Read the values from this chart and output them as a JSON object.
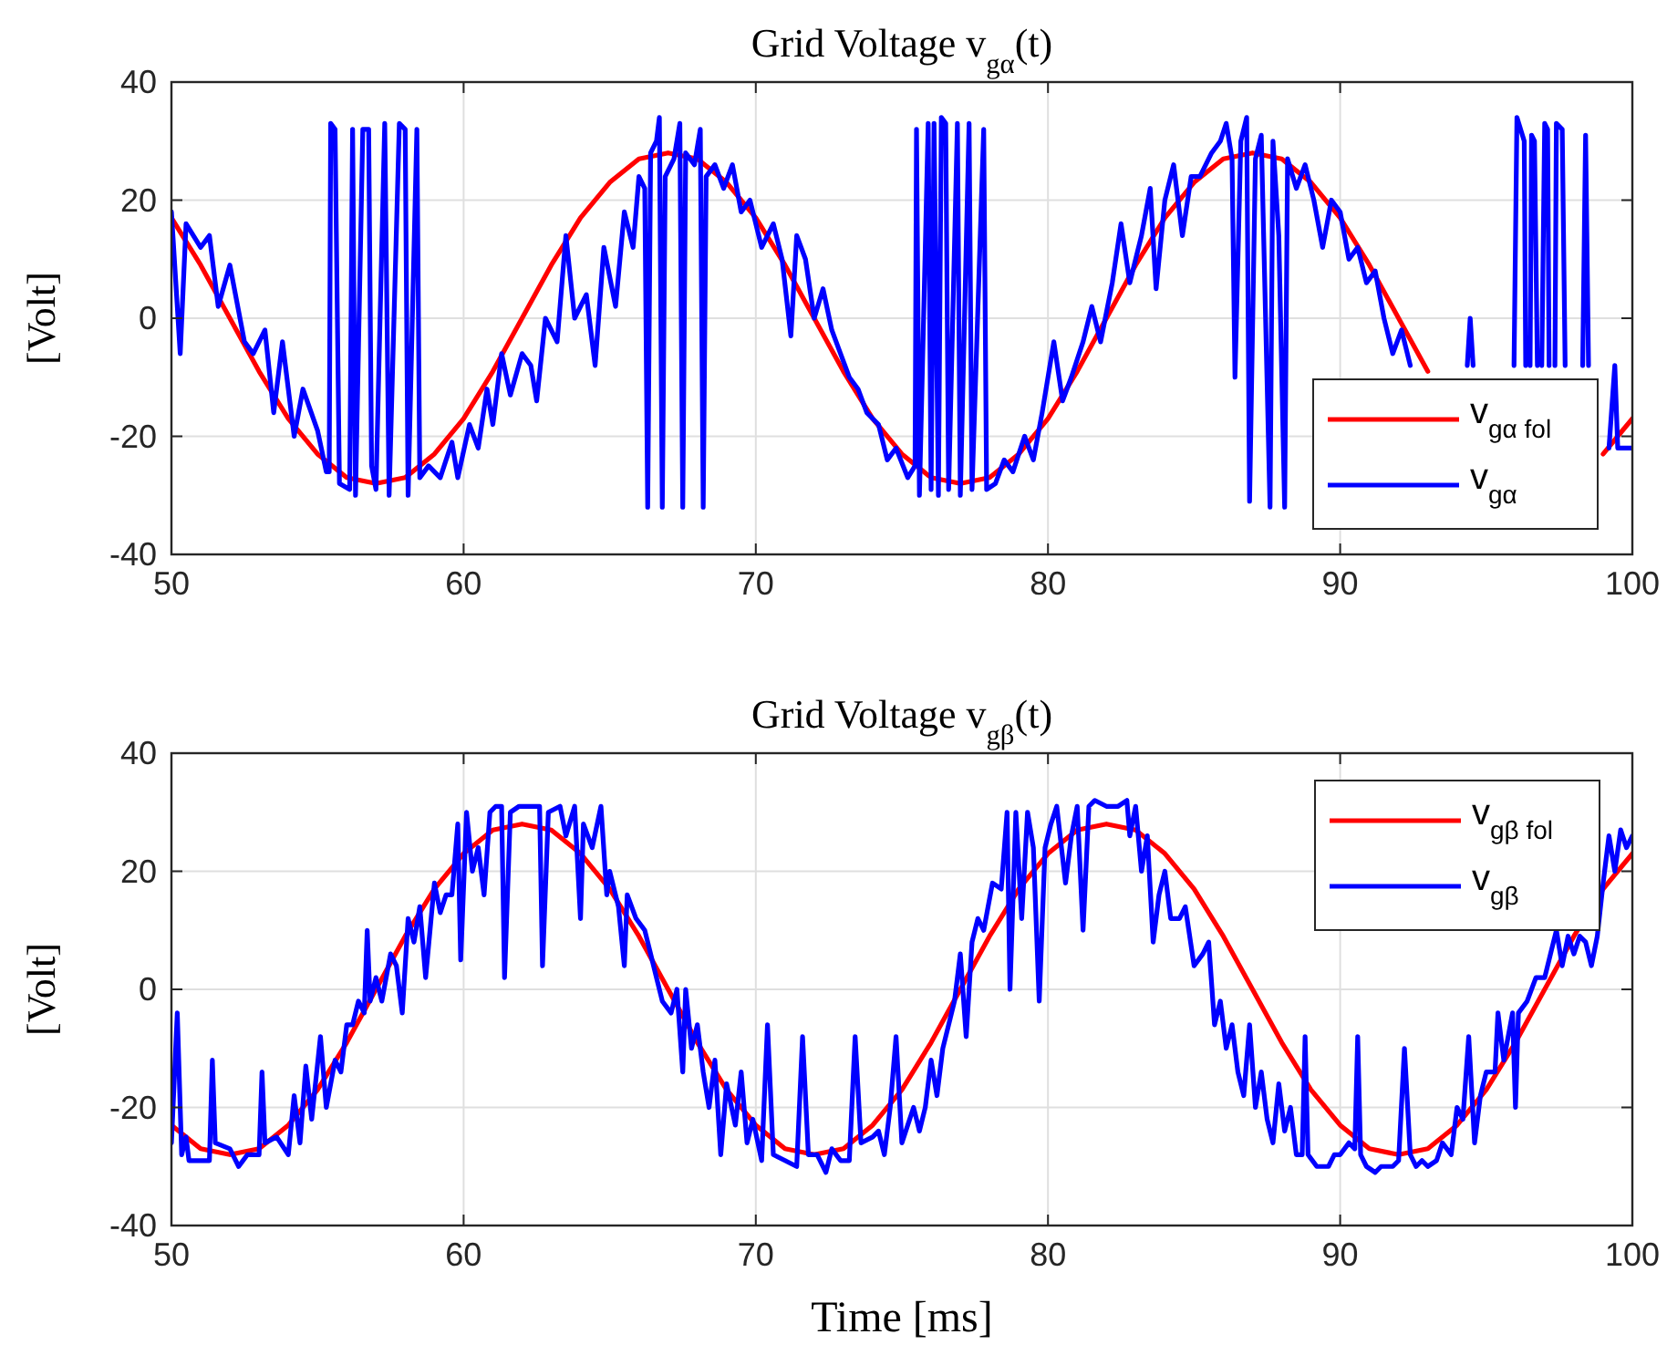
{
  "chart_data": [
    {
      "type": "line",
      "title": "Grid Voltage v$_{gα}$(t)",
      "ylabel": "[Volt]",
      "xlim": [
        50,
        100
      ],
      "xticks": [
        50,
        60,
        70,
        80,
        90,
        100
      ],
      "ylim": [
        -40,
        40
      ],
      "yticks": [
        -40,
        -20,
        0,
        20,
        40
      ],
      "grid": true,
      "legend": "bottom right",
      "line_style": "solid",
      "marker": "none",
      "series": [
        {
          "name": "v$_{gα fol}$",
          "color": "#ff0000",
          "x": [
            50,
            51,
            52,
            53,
            54,
            55,
            56,
            57,
            58,
            59,
            60,
            61,
            62,
            63,
            64,
            65,
            66,
            67,
            68,
            69,
            70,
            71,
            72,
            73,
            74,
            75,
            76,
            77,
            78,
            79,
            80,
            81,
            82,
            83,
            84,
            85,
            86,
            87,
            88,
            89,
            90,
            91,
            92,
            93,
            94,
            95,
            96,
            97,
            98,
            99,
            100
          ],
          "values": [
            17,
            9,
            0,
            -9,
            -17,
            -23,
            -27,
            -28,
            -27,
            -23,
            -17,
            -9,
            0,
            9,
            17,
            23,
            27,
            28,
            27,
            23,
            17,
            9,
            0,
            -9,
            -17,
            -23,
            -27,
            -28,
            -27,
            -23,
            -17,
            -9,
            0,
            9,
            17,
            23,
            27,
            28,
            27,
            23,
            17,
            9,
            0,
            -9,
            null,
            null,
            null,
            null,
            null,
            -23,
            -17
          ]
        },
        {
          "name": "v$_{gα}$",
          "color": "#0000ff",
          "x": [
            50,
            50.3,
            50.5,
            51,
            51.3,
            51.6,
            52,
            52.5,
            52.8,
            53.2,
            53.5,
            53.8,
            54.2,
            54.5,
            55,
            55.3,
            55.4,
            55.45,
            55.6,
            55.75,
            56.1,
            56.2,
            56.3,
            56.55,
            56.75,
            56.85,
            57,
            57.3,
            57.45,
            57.8,
            58,
            58.1,
            58.4,
            58.5,
            58.8,
            59.2,
            59.6,
            59.8,
            60.2,
            60.5,
            60.8,
            61,
            61.3,
            61.6,
            62,
            62.3,
            62.5,
            62.8,
            63.2,
            63.5,
            63.8,
            64.2,
            64.5,
            64.8,
            65.2,
            65.5,
            65.8,
            66,
            66.2,
            66.3,
            66.4,
            66.6,
            66.7,
            66.8,
            66.9,
            67.2,
            67.4,
            67.5,
            67.6,
            67.9,
            68.1,
            68.2,
            68.3,
            68.6,
            68.9,
            69.2,
            69.5,
            69.8,
            70.2,
            70.6,
            70.9,
            71.2,
            71.4,
            71.7,
            72,
            72.3,
            72.6,
            72.9,
            73.2,
            73.5,
            73.8,
            74.2,
            74.5,
            74.8,
            75.2,
            75.45,
            75.5,
            75.6,
            75.9,
            76,
            76.1,
            76.25,
            76.35,
            76.5,
            76.6,
            76.9,
            77,
            77.3,
            77.4,
            77.8,
            77.9,
            78.2,
            78.5,
            78.8,
            79.2,
            79.5,
            79.8,
            80.2,
            80.5,
            80.8,
            81.2,
            81.5,
            81.8,
            82.2,
            82.5,
            82.8,
            83.2,
            83.5,
            83.7,
            84,
            84.3,
            84.6,
            84.9,
            85.2,
            85.6,
            85.9,
            86.1,
            86.3,
            86.4,
            86.6,
            86.8,
            86.9,
            87.1,
            87.3,
            87.6,
            87.7,
            87.9,
            88.1,
            88.2,
            88.5,
            88.8,
            89.1,
            89.4,
            89.7,
            90,
            90.3,
            90.6,
            90.9,
            91.2,
            91.5,
            91.8,
            92.1,
            92.4,
            92.5,
            94.35,
            94.45,
            94.55,
            94.6,
            95.95,
            96.05,
            96.3,
            96.35,
            96.4,
            96.5,
            96.55,
            96.65,
            96.75,
            96.8,
            96.9,
            97.0,
            97.1,
            97.15,
            97.2,
            97.35,
            97.4,
            97.6,
            97.7,
            97.8,
            98.3,
            98.4,
            98.5,
            98.6,
            99.2,
            99.4,
            99.5,
            100
          ],
          "values": [
            18,
            -6,
            16,
            12,
            14,
            2,
            9,
            -4,
            -6,
            -2,
            -16,
            -4,
            -20,
            -12,
            -19,
            -26,
            -26,
            33,
            32,
            -28,
            -29,
            32,
            -30,
            32,
            32,
            -25,
            -29,
            33,
            -30,
            33,
            32,
            -30,
            32,
            -27,
            -25,
            -27,
            -21,
            -27,
            -18,
            -22,
            -12,
            -18,
            -6,
            -13,
            -6,
            -8,
            -14,
            0,
            -4,
            14,
            0,
            4,
            -8,
            12,
            2,
            18,
            12,
            24,
            22,
            -32,
            28,
            30,
            34,
            -32,
            24,
            27,
            33,
            -32,
            28,
            26,
            32,
            -32,
            24,
            26,
            22,
            26,
            18,
            20,
            12,
            16,
            10,
            -3,
            14,
            10,
            0,
            5,
            -2,
            -6,
            -10,
            -12,
            -16,
            -18,
            -24,
            -22,
            -27,
            -25,
            32,
            -30,
            33,
            -29,
            33,
            -30,
            34,
            33,
            -29,
            33,
            -30,
            33,
            -29,
            32,
            -29,
            -28,
            -24,
            -26,
            -20,
            -24,
            -16,
            -4,
            -14,
            -10,
            -4,
            2,
            -4,
            6,
            16,
            6,
            14,
            22,
            5,
            20,
            26,
            14,
            24,
            24,
            28,
            30,
            33,
            27,
            -10,
            30,
            34,
            -31,
            27,
            31,
            -32,
            30,
            14,
            -32,
            27,
            22,
            26,
            20,
            12,
            20,
            18,
            10,
            12,
            6,
            8,
            0,
            -6,
            -2,
            -8,
            null,
            -8,
            0,
            -8,
            null,
            -8,
            34,
            30,
            -8,
            null,
            -8,
            31,
            30,
            -8,
            null,
            -8,
            33,
            32,
            -8,
            null,
            -8,
            33,
            32,
            -8,
            null,
            -8,
            31,
            -8,
            null,
            -22,
            -8,
            -22,
            -22
          ]
        }
      ]
    },
    {
      "type": "line",
      "title": "Grid Voltage v$_{gβ}$(t)",
      "xlabel": "Time [ms]",
      "ylabel": "[Volt]",
      "xlim": [
        50,
        100
      ],
      "xticks": [
        50,
        60,
        70,
        80,
        90,
        100
      ],
      "ylim": [
        -40,
        40
      ],
      "yticks": [
        -40,
        -20,
        0,
        20,
        40
      ],
      "grid": true,
      "legend": "top right",
      "line_style": "solid",
      "marker": "none",
      "series": [
        {
          "name": "v$_{gβ fol}$",
          "color": "#ff0000",
          "x": [
            50,
            51,
            52,
            53,
            54,
            55,
            56,
            57,
            58,
            59,
            60,
            61,
            62,
            63,
            64,
            65,
            66,
            67,
            68,
            69,
            70,
            71,
            72,
            73,
            74,
            75,
            76,
            77,
            78,
            79,
            80,
            81,
            82,
            83,
            84,
            85,
            86,
            87,
            88,
            89,
            90,
            91,
            92,
            93,
            94,
            95,
            96,
            97,
            98,
            99,
            100
          ],
          "values": [
            -23,
            -27,
            -28,
            -27,
            -23,
            -17,
            -9,
            0,
            9,
            17,
            23,
            27,
            28,
            27,
            23,
            17,
            9,
            0,
            -9,
            -17,
            -23,
            -27,
            -28,
            -27,
            -23,
            -17,
            -9,
            0,
            9,
            17,
            23,
            27,
            28,
            27,
            23,
            17,
            9,
            0,
            -9,
            -17,
            -23,
            -27,
            -28,
            -27,
            -23,
            -17,
            -9,
            0,
            9,
            17,
            23
          ]
        },
        {
          "name": "v$_{gβ}$",
          "color": "#0000ff",
          "x": [
            50,
            50.2,
            50.35,
            50.5,
            50.6,
            51,
            51.3,
            51.4,
            51.5,
            52,
            52.3,
            52.6,
            53,
            53.1,
            53.2,
            53.6,
            54,
            54.2,
            54.4,
            54.6,
            54.8,
            55.1,
            55.3,
            55.6,
            55.8,
            56,
            56.2,
            56.4,
            56.6,
            56.7,
            56.8,
            57,
            57.2,
            57.5,
            57.7,
            57.9,
            58.1,
            58.3,
            58.5,
            58.7,
            59,
            59.2,
            59.4,
            59.6,
            59.8,
            59.9,
            60.1,
            60.3,
            60.5,
            60.7,
            60.9,
            61.1,
            61.3,
            61.4,
            61.6,
            61.9,
            62.3,
            62.6,
            62.7,
            62.9,
            63.3,
            63.5,
            63.8,
            64,
            64.1,
            64.4,
            64.7,
            64.9,
            65,
            65.3,
            65.5,
            65.6,
            65.9,
            66.2,
            66.4,
            66.6,
            66.8,
            67.1,
            67.3,
            67.5,
            67.6,
            67.8,
            68,
            68.2,
            68.4,
            68.6,
            68.8,
            69,
            69.3,
            69.5,
            69.7,
            69.9,
            70.2,
            70.4,
            70.6,
            71,
            71.4,
            71.6,
            71.8,
            72.1,
            72.4,
            72.6,
            72.9,
            73.2,
            73.4,
            73.6,
            74,
            74.2,
            74.4,
            74.6,
            74.8,
            75,
            75.4,
            75.6,
            75.8,
            76,
            76.2,
            76.4,
            76.6,
            76.8,
            77,
            77.2,
            77.4,
            77.6,
            77.8,
            78.1,
            78.4,
            78.6,
            78.7,
            78.9,
            79.1,
            79.3,
            79.5,
            79.7,
            79.9,
            80.1,
            80.3,
            80.6,
            80.8,
            81,
            81.2,
            81.4,
            81.6,
            82,
            82.4,
            82.7,
            82.8,
            83,
            83.2,
            83.4,
            83.6,
            83.8,
            84,
            84.2,
            84.5,
            84.7,
            85,
            85.3,
            85.5,
            85.7,
            85.9,
            86.1,
            86.3,
            86.5,
            86.7,
            86.9,
            87.1,
            87.3,
            87.5,
            87.7,
            87.9,
            88.1,
            88.3,
            88.5,
            88.7,
            88.8,
            88.9,
            89.2,
            89.6,
            89.8,
            90,
            90.3,
            90.5,
            90.6,
            90.7,
            90.9,
            91.2,
            91.4,
            91.8,
            92,
            92.2,
            92.4,
            92.6,
            92.8,
            93,
            93.3,
            93.5,
            93.8,
            94,
            94.2,
            94.4,
            94.6,
            94.8,
            95,
            95.3,
            95.4,
            95.6,
            95.9,
            96,
            96.1,
            96.4,
            96.7,
            97,
            97.2,
            97.4,
            97.6,
            97.8,
            98,
            98.2,
            98.4,
            98.6,
            98.8,
            99,
            99.2,
            99.4,
            99.6,
            99.8,
            100
          ],
          "values": [
            -26,
            -4,
            -28,
            -25,
            -29,
            -29,
            -29,
            -12,
            -26,
            -27,
            -30,
            -28,
            -28,
            -14,
            -26,
            -25,
            -28,
            -18,
            -26,
            -13,
            -22,
            -8,
            -20,
            -12,
            -14,
            -6,
            -6,
            -2,
            -4,
            10,
            -2,
            2,
            -2,
            6,
            4,
            -4,
            12,
            8,
            14,
            2,
            18,
            13,
            16,
            16,
            28,
            5,
            30,
            20,
            24,
            16,
            30,
            31,
            31,
            2,
            30,
            31,
            31,
            31,
            4,
            30,
            31,
            26,
            31,
            12,
            28,
            24,
            31,
            16,
            20,
            14,
            4,
            16,
            12,
            10,
            6,
            2,
            -2,
            -4,
            0,
            -14,
            0,
            -10,
            -6,
            -14,
            -20,
            -12,
            -28,
            -16,
            -23,
            -14,
            -26,
            -22,
            -29,
            -6,
            -28,
            -29,
            -30,
            -8,
            -28,
            -28,
            -31,
            -27,
            -29,
            -29,
            -8,
            -26,
            -25,
            -24,
            -28,
            -20,
            -8,
            -26,
            -20,
            -24,
            -20,
            -12,
            -18,
            -10,
            -6,
            -2,
            6,
            -8,
            8,
            12,
            10,
            18,
            17,
            30,
            0,
            30,
            12,
            30,
            24,
            -2,
            24,
            28,
            31,
            18,
            26,
            31,
            10,
            31,
            32,
            31,
            31,
            32,
            26,
            31,
            20,
            26,
            8,
            16,
            20,
            12,
            12,
            14,
            4,
            6,
            8,
            -6,
            -2,
            -10,
            -6,
            -14,
            -18,
            -6,
            -20,
            -14,
            -22,
            -26,
            -16,
            -24,
            -20,
            -28,
            -28,
            -8,
            -28,
            -30,
            -30,
            -28,
            -28,
            -26,
            -27,
            -8,
            -28,
            -30,
            -31,
            -30,
            -30,
            -29,
            -10,
            -28,
            -30,
            -29,
            -30,
            -29,
            -26,
            -28,
            -20,
            -22,
            -8,
            -26,
            -18,
            -14,
            -14,
            -4,
            -12,
            -4,
            -20,
            -4,
            -2,
            2,
            2,
            6,
            10,
            4,
            9,
            6,
            9,
            8,
            4,
            9,
            18,
            26,
            20,
            27,
            24,
            26
          ]
        }
      ]
    }
  ]
}
